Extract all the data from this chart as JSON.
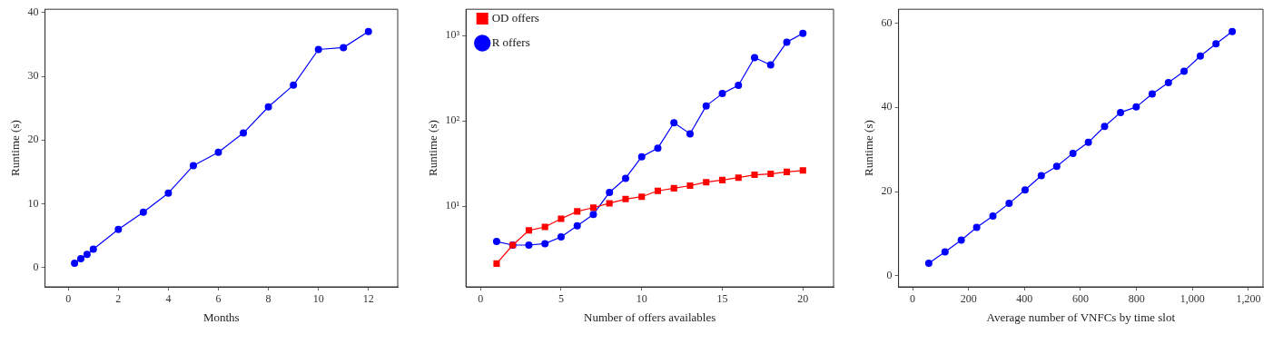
{
  "chart_data": [
    {
      "type": "line",
      "xlabel": "Months",
      "ylabel": "Runtime (s)",
      "marker": "circle",
      "grid": false,
      "legend": false,
      "xlim": [
        -0.93,
        13.17
      ],
      "xticks": [
        0,
        2,
        4,
        6,
        8,
        10,
        12
      ],
      "ylim": [
        -3,
        40.5
      ],
      "yticks": [
        0,
        10,
        20,
        30,
        40
      ],
      "x": [
        0.25,
        0.5,
        0.75,
        1,
        2,
        3,
        4,
        5,
        6,
        7,
        8,
        9,
        10,
        11,
        12
      ],
      "series": [
        {
          "color": "#0000ff",
          "values": [
            0.7,
            1.4,
            2.1,
            2.9,
            6.0,
            8.7,
            11.7,
            16.0,
            18.1,
            21.1,
            25.2,
            28.6,
            34.2,
            34.5,
            37.0
          ]
        }
      ]
    },
    {
      "type": "line",
      "xlabel": "Number of offers availables",
      "ylabel": "Runtime (s)",
      "log": "y",
      "grid": false,
      "legend": "top left",
      "xlim": [
        -0.9,
        21.9
      ],
      "xticks": [
        0,
        5,
        10,
        15,
        20
      ],
      "ylim": [
        1.13,
        2040
      ],
      "yticks": [
        {
          "value": 10,
          "label": "10¹"
        },
        {
          "value": 100,
          "label": "10²"
        },
        {
          "value": 1000,
          "label": "10³"
        }
      ],
      "x": [
        1,
        2,
        3,
        4,
        5,
        6,
        7,
        8,
        9,
        10,
        11,
        12,
        13,
        14,
        15,
        16,
        17,
        18,
        19,
        20
      ],
      "series": [
        {
          "name": "R offers",
          "color": "#0000ff",
          "marker": "circle",
          "values": [
            3.84,
            3.49,
            3.49,
            3.63,
            4.35,
            5.89,
            8.0,
            14.5,
            21.2,
            38,
            47.9,
            95,
            70.6,
            150,
            209,
            261,
            552,
            453,
            840,
            1065
          ]
        },
        {
          "name": "OD offers",
          "color": "#ff0000",
          "marker": "square",
          "values": [
            2.12,
            3.49,
            5.19,
            5.7,
            7.1,
            8.67,
            9.6,
            10.8,
            12.1,
            12.9,
            15.1,
            16.2,
            17.4,
            19.1,
            20.2,
            21.6,
            23.3,
            23.9,
            25.2,
            26.2
          ]
        }
      ]
    },
    {
      "type": "line",
      "xlabel": "Average number of VNFCs by time slot",
      "ylabel": "Runtime (s)",
      "marker": "circle",
      "grid": false,
      "legend": false,
      "xlim": [
        -50,
        1252
      ],
      "xticks": [
        0,
        200,
        400,
        600,
        800,
        {
          "value": 1000,
          "label": "1,000"
        },
        {
          "value": 1200,
          "label": "1,200"
        }
      ],
      "ylim": [
        -2.6,
        63.3
      ],
      "yticks": [
        0,
        20,
        40,
        60
      ],
      "x": [
        58,
        116,
        174,
        229,
        287,
        345,
        402,
        460,
        515,
        573,
        628,
        686,
        743,
        799,
        856,
        914,
        970,
        1028,
        1084,
        1142
      ],
      "series": [
        {
          "color": "#0000ff",
          "values": [
            3.0,
            5.7,
            8.5,
            11.5,
            14.2,
            17.2,
            20.4,
            23.8,
            26.0,
            29.1,
            31.7,
            35.5,
            38.8,
            40.1,
            43.2,
            45.9,
            48.6,
            52.2,
            55.1,
            58.0
          ]
        }
      ]
    }
  ]
}
